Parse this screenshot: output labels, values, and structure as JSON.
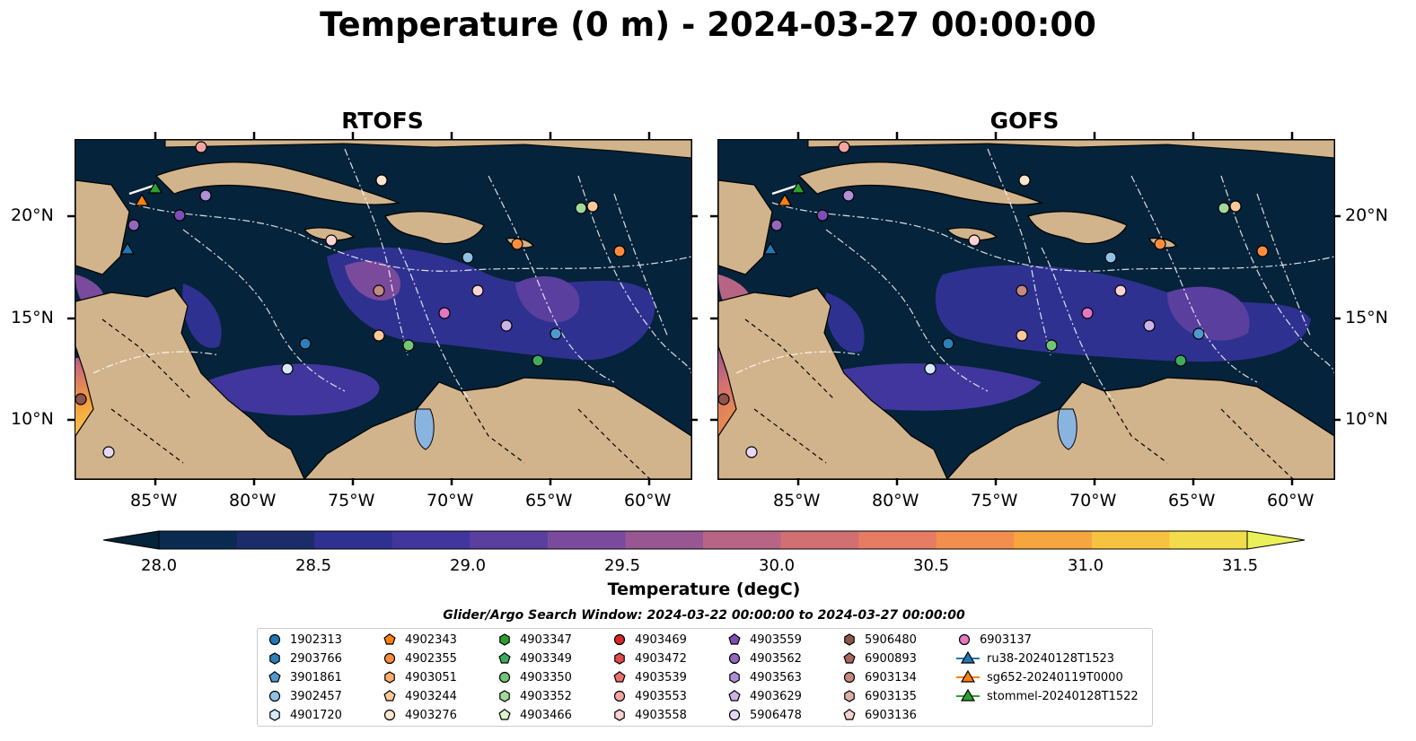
{
  "title": "Temperature (0 m) - 2024-03-27 00:00:00",
  "panels": [
    {
      "title": "RTOFS"
    },
    {
      "title": "GOFS"
    }
  ],
  "axes": {
    "lon_ticks": [
      "85°W",
      "80°W",
      "75°W",
      "70°W",
      "65°W",
      "60°W"
    ],
    "lat_ticks": [
      "20°N",
      "15°N",
      "10°N"
    ]
  },
  "colorbar": {
    "label": "Temperature (degC)",
    "ticks": [
      "28.0",
      "28.5",
      "29.0",
      "29.5",
      "30.0",
      "30.5",
      "31.0",
      "31.5"
    ],
    "colors": [
      "#05233a",
      "#0b2a4f",
      "#1c2c6a",
      "#2f3190",
      "#41369d",
      "#5a3f9f",
      "#7a4a9c",
      "#985693",
      "#b86585",
      "#d16f73",
      "#e57c63",
      "#f28f4f",
      "#f6a53f",
      "#f7c240",
      "#f3dc4b",
      "#e9f059"
    ]
  },
  "legend": {
    "title": "Glider/Argo Search Window: 2024-03-22 00:00:00 to 2024-03-27 00:00:00",
    "items": [
      {
        "label": "1902313",
        "marker": "circle",
        "color": "#1f77b4"
      },
      {
        "label": "2903766",
        "marker": "hexagon",
        "color": "#2c7fb8"
      },
      {
        "label": "3901861",
        "marker": "pentagon",
        "color": "#4e9ad0"
      },
      {
        "label": "3902457",
        "marker": "circle",
        "color": "#8fc1e6"
      },
      {
        "label": "4901720",
        "marker": "hexagon",
        "color": "#d4ebfa"
      },
      {
        "label": "4902343",
        "marker": "pentagon",
        "color": "#ff7f0e"
      },
      {
        "label": "4902355",
        "marker": "circle",
        "color": "#fd8d3c"
      },
      {
        "label": "4903051",
        "marker": "hexagon",
        "color": "#fdae6b"
      },
      {
        "label": "4903244",
        "marker": "pentagon",
        "color": "#fdc99a"
      },
      {
        "label": "4903276",
        "marker": "circle",
        "color": "#fee6ce"
      },
      {
        "label": "4903347",
        "marker": "hexagon",
        "color": "#2ca02c"
      },
      {
        "label": "4903349",
        "marker": "pentagon",
        "color": "#41ab5d"
      },
      {
        "label": "4903350",
        "marker": "circle",
        "color": "#74c476"
      },
      {
        "label": "4903352",
        "marker": "hexagon",
        "color": "#a1d99b"
      },
      {
        "label": "4903466",
        "marker": "pentagon",
        "color": "#d9f5d0"
      },
      {
        "label": "4903469",
        "marker": "circle",
        "color": "#d62728"
      },
      {
        "label": "4903472",
        "marker": "hexagon",
        "color": "#e34a4a"
      },
      {
        "label": "4903539",
        "marker": "pentagon",
        "color": "#ef6f6f"
      },
      {
        "label": "4903553",
        "marker": "circle",
        "color": "#f4a3a3"
      },
      {
        "label": "4903558",
        "marker": "hexagon",
        "color": "#fbd3d3"
      },
      {
        "label": "4903559",
        "marker": "pentagon",
        "color": "#7b4fb5"
      },
      {
        "label": "4903562",
        "marker": "circle",
        "color": "#9467bd"
      },
      {
        "label": "4903563",
        "marker": "hexagon",
        "color": "#b08fd6"
      },
      {
        "label": "4903629",
        "marker": "pentagon",
        "color": "#cbb3e8"
      },
      {
        "label": "5906478",
        "marker": "circle",
        "color": "#e6d8f5"
      },
      {
        "label": "5906480",
        "marker": "hexagon",
        "color": "#8c564b"
      },
      {
        "label": "6900893",
        "marker": "pentagon",
        "color": "#a9685c"
      },
      {
        "label": "6903134",
        "marker": "circle",
        "color": "#c48a7e"
      },
      {
        "label": "6903135",
        "marker": "hexagon",
        "color": "#ddb0a6"
      },
      {
        "label": "6903136",
        "marker": "pentagon",
        "color": "#f3d4cc"
      },
      {
        "label": "6903137",
        "marker": "circle",
        "color": "#e377c2"
      },
      {
        "label": "ru38-20240128T1523",
        "marker": "triangle-line",
        "color": "#1f77b4"
      },
      {
        "label": "sg652-20240119T0000",
        "marker": "triangle-line",
        "color": "#ff7f0e"
      },
      {
        "label": "stommel-20240128T1522",
        "marker": "triangle-line",
        "color": "#2ca02c"
      }
    ]
  }
}
